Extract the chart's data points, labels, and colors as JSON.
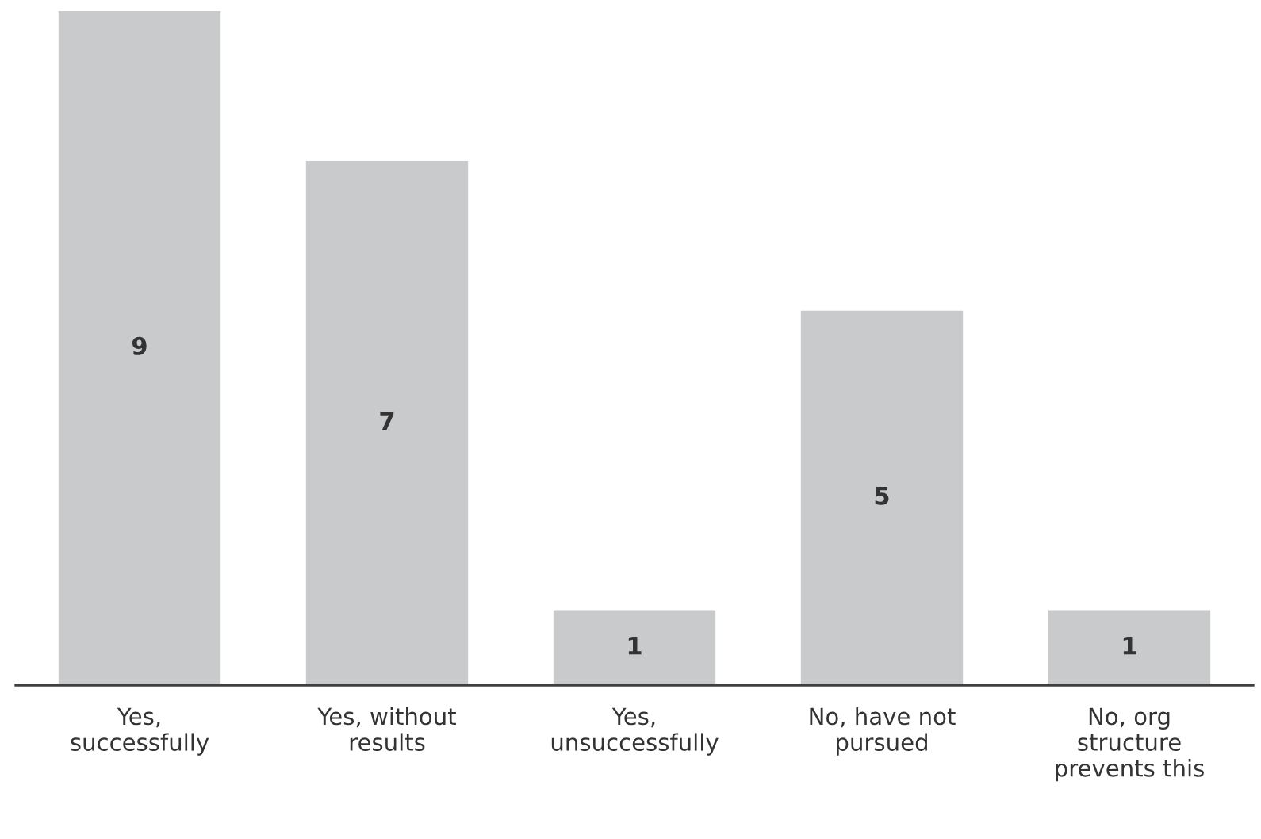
{
  "chart_data": {
    "type": "bar",
    "categories": [
      "Yes,\nsuccessfully",
      "Yes, without\nresults",
      "Yes,\nunsuccessfully",
      "No, have not\npursued",
      "No, org\nstructure\nprevents this"
    ],
    "values": [
      9,
      7,
      1,
      5,
      1
    ],
    "color": "#c8cacc",
    "data_labels": true,
    "grid": false,
    "legend": false
  }
}
